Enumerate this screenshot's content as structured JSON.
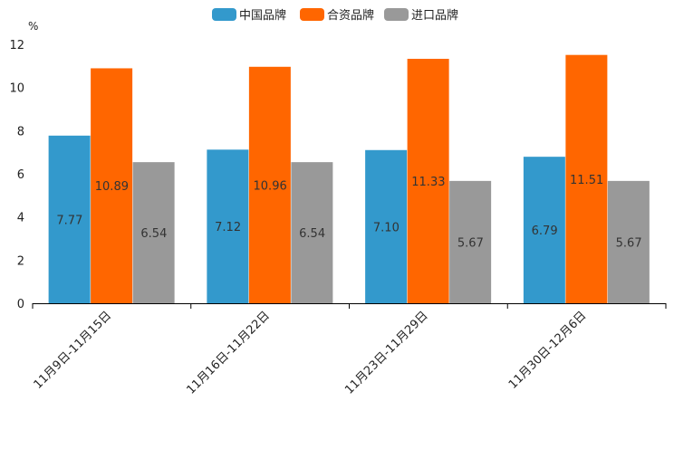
{
  "chart_data": {
    "type": "bar",
    "title": "",
    "xlabel": "",
    "ylabel": "%",
    "ylim": [
      0,
      12
    ],
    "yticks": [
      0,
      2,
      4,
      6,
      8,
      10,
      12
    ],
    "grid": false,
    "legend_position": "top-center",
    "categories": [
      "11月9日-11月15日",
      "11月16日-11月22日",
      "11月23日-11月29日",
      "11月30日-12月6日"
    ],
    "series": [
      {
        "name": "中国品牌",
        "color": "#3399cc",
        "values": [
          7.77,
          7.12,
          7.1,
          6.79
        ],
        "labels": [
          "7.77",
          "7.12",
          "7.10",
          "6.79"
        ]
      },
      {
        "name": "合资品牌",
        "color": "#ff6600",
        "values": [
          10.89,
          10.96,
          11.33,
          11.51
        ],
        "labels": [
          "10.89",
          "10.96",
          "11.33",
          "11.51"
        ]
      },
      {
        "name": "进口品牌",
        "color": "#999999",
        "values": [
          6.54,
          6.54,
          5.67,
          5.67
        ],
        "labels": [
          "6.54",
          "6.54",
          "5.67",
          "5.67"
        ]
      }
    ]
  }
}
